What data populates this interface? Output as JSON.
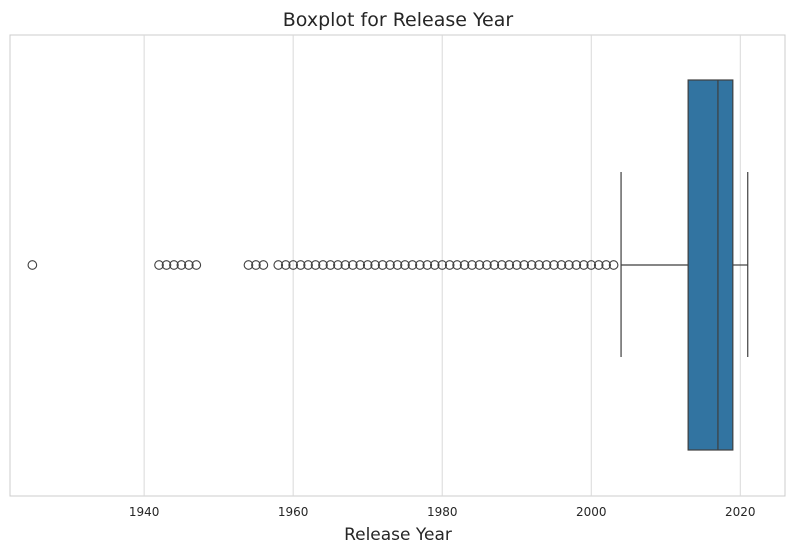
{
  "chart_data": {
    "type": "boxplot",
    "title": "Boxplot for Release Year",
    "xlabel": "Release Year",
    "ylabel": "",
    "xlim": [
      1922,
      2026
    ],
    "xticks": [
      1940,
      1960,
      1980,
      2000,
      2020
    ],
    "grid": "on",
    "box": {
      "color": "#3274a1",
      "q1": 2013,
      "median": 2017,
      "q3": 2019,
      "whisker_low": 2004,
      "whisker_high": 2021
    },
    "outliers": [
      1925,
      1942,
      1943,
      1944,
      1945,
      1946,
      1947,
      1954,
      1955,
      1956,
      1958,
      1959,
      1960,
      1961,
      1962,
      1963,
      1964,
      1965,
      1966,
      1967,
      1968,
      1969,
      1970,
      1971,
      1972,
      1973,
      1974,
      1975,
      1976,
      1977,
      1978,
      1979,
      1980,
      1981,
      1982,
      1983,
      1984,
      1985,
      1986,
      1987,
      1988,
      1989,
      1990,
      1991,
      1992,
      1993,
      1994,
      1995,
      1996,
      1997,
      1998,
      1999,
      2000,
      2001,
      2002,
      2003
    ]
  }
}
